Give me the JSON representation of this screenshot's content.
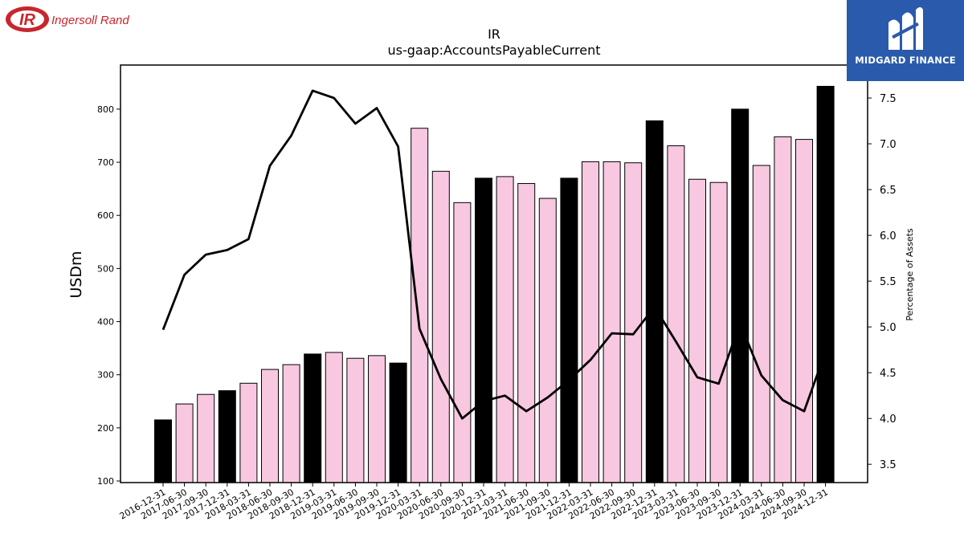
{
  "logo": {
    "brand_name": "Ingersoll Rand",
    "brand_mark": "IR"
  },
  "partner_logo": {
    "name": "MIDGARD FINANCE",
    "color": "#2a5aab"
  },
  "chart_data": {
    "type": "bar",
    "title": "IR",
    "subtitle": "us-gaap:AccountsPayableCurrent",
    "ylabel": "USDm",
    "y2label": "Percentage of Assets",
    "ylim": [
      97,
      883
    ],
    "y2lim": [
      3.3,
      7.86
    ],
    "yticks": [
      100,
      200,
      300,
      400,
      500,
      600,
      700,
      800
    ],
    "y2ticks": [
      "3.5",
      "4.0",
      "4.5",
      "5.0",
      "5.5",
      "6.0",
      "6.5",
      "7.0",
      "7.5"
    ],
    "categories": [
      "2016-12-31",
      "2017-06-30",
      "2017-09-30",
      "2017-12-31",
      "2018-03-31",
      "2018-06-30",
      "2018-09-30",
      "2018-12-31",
      "2019-03-31",
      "2019-06-30",
      "2019-09-30",
      "2019-12-31",
      "2020-03-31",
      "2020-06-30",
      "2020-09-30",
      "2020-12-31",
      "2021-03-31",
      "2021-06-30",
      "2021-09-30",
      "2021-12-31",
      "2022-03-31",
      "2022-06-30",
      "2022-09-30",
      "2022-12-31",
      "2023-03-31",
      "2023-06-30",
      "2023-09-30",
      "2023-12-31",
      "2024-03-31",
      "2024-06-30",
      "2024-09-30",
      "2024-12-31"
    ],
    "series": [
      {
        "values": [
          215,
          245,
          263,
          270,
          284,
          310,
          319,
          339,
          342,
          331,
          336,
          322,
          764,
          683,
          624,
          670,
          673,
          660,
          632,
          670,
          701,
          701,
          699,
          778,
          731,
          668,
          662,
          800,
          694,
          748,
          743,
          843
        ]
      },
      {
        "axis": "right",
        "type": "line",
        "values": [
          4.97,
          5.57,
          5.79,
          5.84,
          5.96,
          6.76,
          7.09,
          7.58,
          7.5,
          7.22,
          7.39,
          6.97,
          4.98,
          4.43,
          4.0,
          4.19,
          4.25,
          4.08,
          4.23,
          4.42,
          4.64,
          4.93,
          4.92,
          5.22,
          4.84,
          4.45,
          4.38,
          5.04,
          4.47,
          4.2,
          4.08,
          4.73
        ]
      }
    ],
    "year_end_bar_color": "#000000",
    "quarter_bar_color": "#f8c8e0",
    "line_color": "#000000",
    "grid": false
  }
}
